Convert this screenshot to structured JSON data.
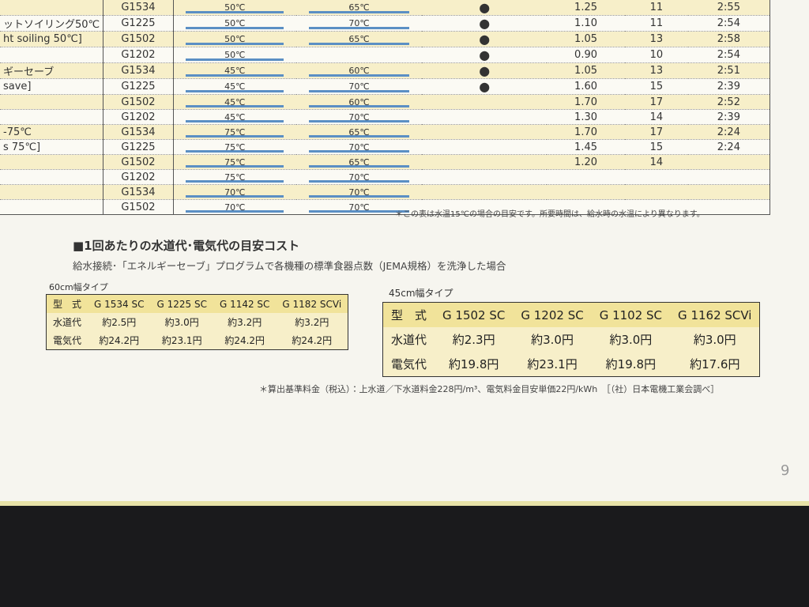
{
  "spec_table": {
    "rows": [
      {
        "program": null,
        "model": "G1534",
        "wash": "50℃",
        "rinse": "65℃",
        "dot": "●",
        "value": "1.25",
        "count": "11",
        "time": "2:55"
      },
      {
        "program": "ットソイリング50℃",
        "model": "G1225",
        "wash": "50℃",
        "rinse": "70℃",
        "dot": "●",
        "value": "1.10",
        "count": "11",
        "time": "2:54"
      },
      {
        "program": "ht soiling 50℃]",
        "model": "G1502",
        "wash": "50℃",
        "rinse": "65℃",
        "dot": "●",
        "value": "1.05",
        "count": "13",
        "time": "2:58"
      },
      {
        "program": null,
        "model": "G1202",
        "wash": "50℃",
        "rinse": null,
        "dot": "●",
        "value": "0.90",
        "count": "10",
        "time": "2:54"
      },
      {
        "program": "ギーセーブ",
        "model": "G1534",
        "wash": "45℃",
        "rinse": "60℃",
        "dot": "●",
        "value": "1.05",
        "count": "13",
        "time": "2:51"
      },
      {
        "program": "save]",
        "model": "G1225",
        "wash": "45℃",
        "rinse": "70℃",
        "dot": "●",
        "value": "1.60",
        "count": "15",
        "time": "2:39"
      },
      {
        "program": null,
        "model": "G1502",
        "wash": "45℃",
        "rinse": "60℃",
        "dot": null,
        "value": "1.70",
        "count": "17",
        "time": "2:52"
      },
      {
        "program": null,
        "model": "G1202",
        "wash": "45℃",
        "rinse": "70℃",
        "dot": null,
        "value": "1.30",
        "count": "14",
        "time": "2:39"
      },
      {
        "program": "-75℃",
        "model": "G1534",
        "wash": "75℃",
        "rinse": "65℃",
        "dot": null,
        "value": "1.70",
        "count": "17",
        "time": "2:24"
      },
      {
        "program": "s 75℃]",
        "model": "G1225",
        "wash": "75℃",
        "rinse": "70℃",
        "dot": null,
        "value": "1.45",
        "count": "15",
        "time": "2:24"
      },
      {
        "program": null,
        "model": "G1502",
        "wash": "75℃",
        "rinse": "65℃",
        "dot": null,
        "value": "1.20",
        "count": "14",
        "time": null
      },
      {
        "program": null,
        "model": "G1202",
        "wash": "75℃",
        "rinse": "70℃",
        "dot": null,
        "value": null,
        "count": null,
        "time": null
      },
      {
        "program": null,
        "model": "G1534",
        "wash": "70℃",
        "rinse": "70℃",
        "dot": null,
        "value": null,
        "count": null,
        "time": null
      },
      {
        "program": null,
        "model": "G1502",
        "wash": "70℃",
        "rinse": "70℃",
        "dot": null,
        "value": null,
        "count": null,
        "time": null
      }
    ],
    "footnote": "＊この表は水温15℃の場合の目安です。所要時間は、給水時の水温により異なります。"
  },
  "cost_section": {
    "title": "■1回あたりの水道代･電気代の目安コスト",
    "subtitle": "給水接続･「エネルギーセーブ」プログラムで各機種の標準食器点数（JEMA規格）を洗浄した場合",
    "table_60": {
      "caption": "60cm幅タイプ",
      "rows": [
        [
          "型　式",
          "G 1534 SC",
          "G 1225 SC",
          "G 1142 SC",
          "G 1182 SCVi"
        ],
        [
          "水道代",
          "約2.5円",
          "約3.0円",
          "約3.2円",
          "約3.2円"
        ],
        [
          "電気代",
          "約24.2円",
          "約23.1円",
          "約24.2円",
          "約24.2円"
        ]
      ]
    },
    "table_45": {
      "caption": "45cm幅タイプ",
      "rows": [
        [
          "型　式",
          "G 1502 SC",
          "G 1202 SC",
          "G 1102 SC",
          "G 1162 SCVi"
        ],
        [
          "水道代",
          "約2.3円",
          "約3.0円",
          "約3.0円",
          "約3.0円"
        ],
        [
          "電気代",
          "約19.8円",
          "約23.1円",
          "約19.8円",
          "約17.6円"
        ]
      ]
    },
    "note": "＊算出基準料金（税込）：上水道／下水道料金228円/m³、電気料金目安単価22円/kWh　［（社）日本電機工業会調べ］"
  },
  "page_number": "9"
}
